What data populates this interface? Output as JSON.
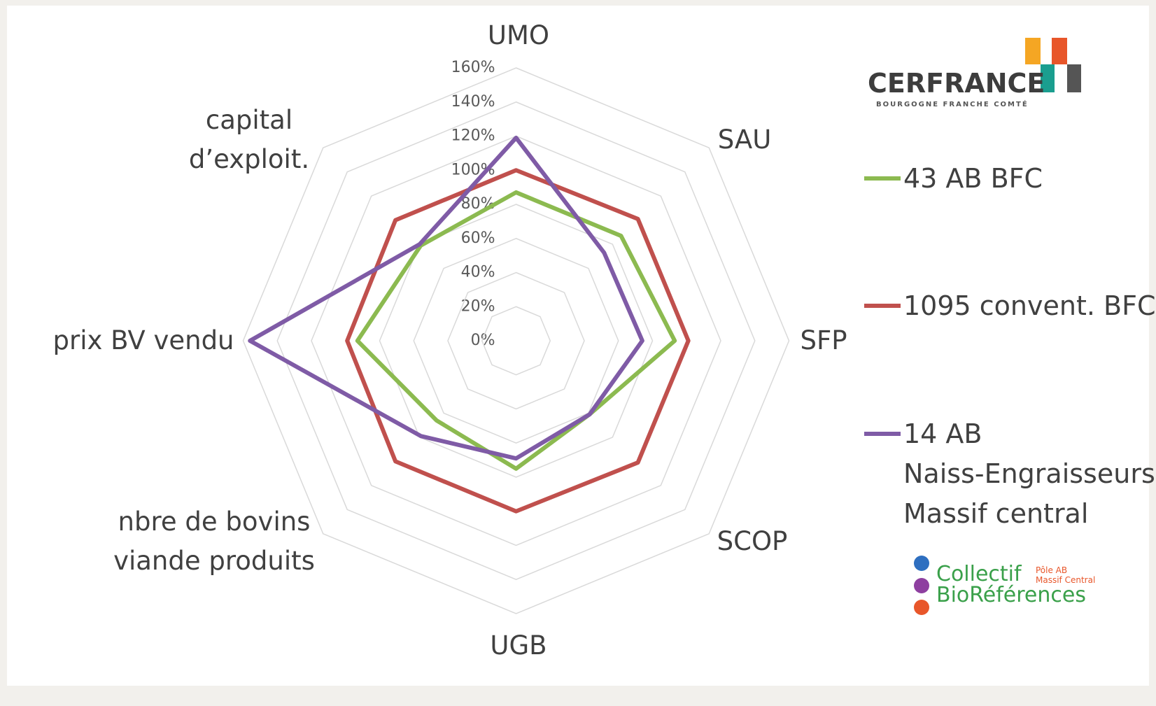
{
  "chart_data": {
    "type": "radar",
    "categories": [
      "UMO",
      "SAU",
      "SFP",
      "SCOP",
      "UGB",
      "nbre de bovins\nviande produits",
      "prix BV vendu",
      "capital\nd’exploit."
    ],
    "ylim": [
      0,
      160
    ],
    "yticks": [
      {
        "value": 0,
        "label": "0%"
      },
      {
        "value": 20,
        "label": "20%"
      },
      {
        "value": 40,
        "label": "40%"
      },
      {
        "value": 60,
        "label": "60%"
      },
      {
        "value": 80,
        "label": "80%"
      },
      {
        "value": 100,
        "label": "100%"
      },
      {
        "value": 120,
        "label": "120%"
      },
      {
        "value": 140,
        "label": "140%"
      },
      {
        "value": 160,
        "label": "160%"
      }
    ],
    "grid": true,
    "legend": "right",
    "series": [
      {
        "name": "43 AB BFC",
        "color": "#8cba50",
        "values": [
          87,
          87,
          93,
          61,
          75,
          66,
          93,
          79
        ]
      },
      {
        "name": "1095 convent. BFC",
        "color": "#c0504d",
        "values": [
          100,
          101,
          101,
          101,
          100,
          100,
          99,
          100
        ]
      },
      {
        "name": "14 AB\nNaiss-Engraisseurs\nMassif central",
        "color": "#7f5ba6",
        "values": [
          119,
          73,
          74,
          61,
          69,
          79,
          156,
          80
        ]
      }
    ]
  },
  "logos": {
    "cerfrance": "CERFRANCE",
    "cerfrance_sub": "BOURGOGNE FRANCHE COMTÉ",
    "collectif": "Collectif",
    "bioreferences": "BioRéférences",
    "pole": "Pôle AB\nMassif Central"
  }
}
